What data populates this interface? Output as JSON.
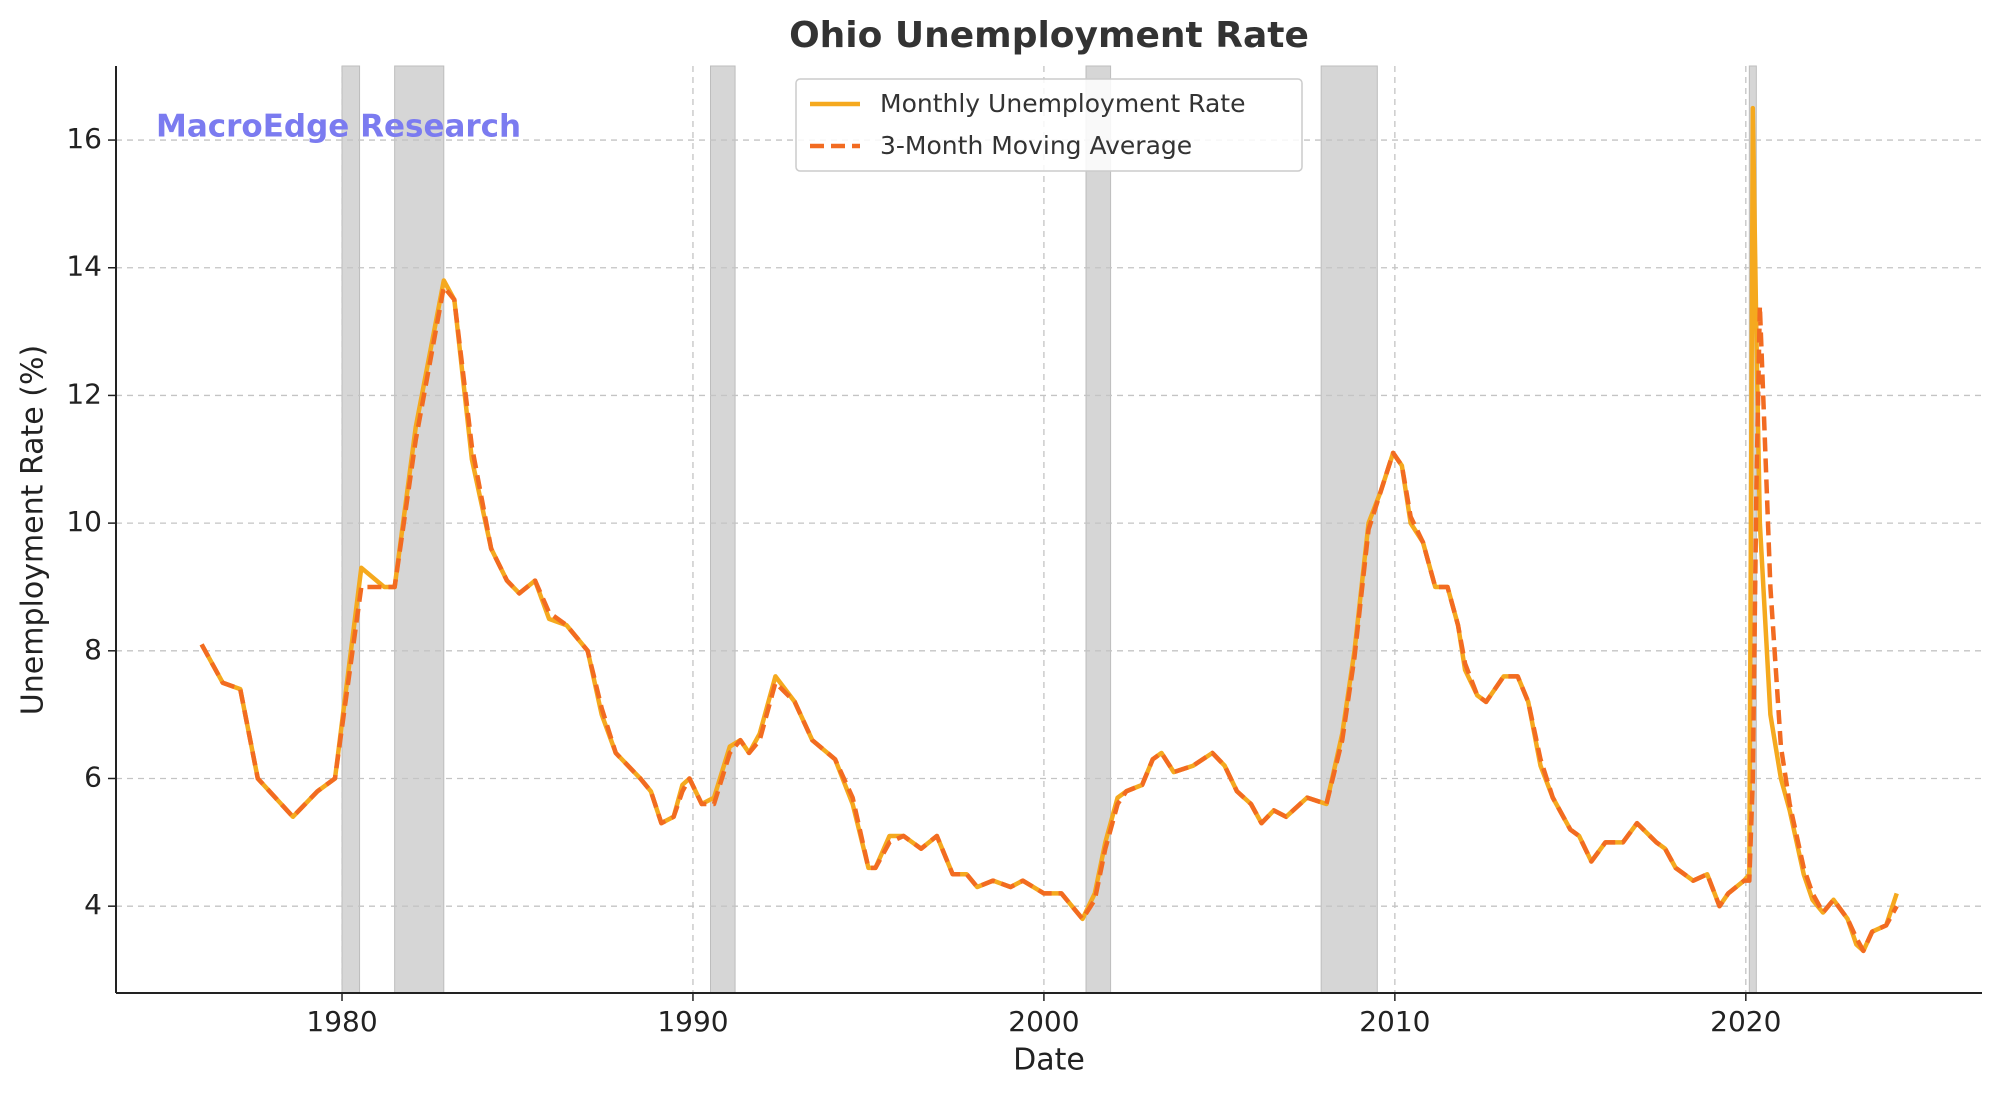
{
  "chart_data": {
    "type": "line",
    "title": "Ohio Unemployment Rate",
    "annotation": "MacroEdge Research",
    "xlabel": "Date",
    "ylabel": "Unemployment Rate (%)",
    "xlim": [
      1973.56,
      2026.73
    ],
    "ylim": [
      2.64,
      17.16
    ],
    "xticks": [
      1980,
      1990,
      2000,
      2010,
      2020
    ],
    "yticks": [
      4,
      6,
      8,
      10,
      12,
      14,
      16
    ],
    "grid": true,
    "legend": "upper center",
    "recession_color": "#d6d6d6",
    "recessions": [
      [
        1980.0,
        1980.5
      ],
      [
        1981.5,
        1982.9
      ],
      [
        1990.5,
        1991.2
      ],
      [
        2001.2,
        2001.9
      ],
      [
        2007.9,
        2009.5
      ],
      [
        2020.1,
        2020.3
      ]
    ],
    "x": [
      1976.0,
      1976.6,
      1977.1,
      1977.6,
      1978.6,
      1979.3,
      1979.8,
      1980.55,
      1981.2,
      1981.5,
      1982.1,
      1982.9,
      1983.2,
      1983.7,
      1984.25,
      1984.7,
      1985.05,
      1985.5,
      1985.9,
      1986.4,
      1987.0,
      1987.4,
      1987.8,
      1988.5,
      1988.8,
      1989.1,
      1989.45,
      1989.7,
      1989.9,
      1990.25,
      1990.6,
      1991.05,
      1991.35,
      1991.6,
      1991.9,
      1992.35,
      1992.9,
      1993.4,
      1994.05,
      1994.55,
      1995.0,
      1995.2,
      1995.6,
      1996.0,
      1996.5,
      1996.95,
      1997.4,
      1997.8,
      1998.1,
      1998.55,
      1999.05,
      1999.4,
      2000.0,
      2000.5,
      2001.1,
      2001.45,
      2001.75,
      2002.1,
      2002.35,
      2002.8,
      2003.1,
      2003.35,
      2003.7,
      2004.25,
      2004.8,
      2005.15,
      2005.5,
      2005.9,
      2006.2,
      2006.55,
      2006.9,
      2007.5,
      2008.05,
      2008.5,
      2008.85,
      2009.25,
      2009.6,
      2009.95,
      2010.2,
      2010.45,
      2010.8,
      2011.15,
      2011.5,
      2011.8,
      2012.0,
      2012.35,
      2012.6,
      2013.1,
      2013.5,
      2013.8,
      2014.15,
      2014.5,
      2015.0,
      2015.25,
      2015.6,
      2016.0,
      2016.5,
      2016.9,
      2017.45,
      2017.7,
      2018.0,
      2018.5,
      2018.9,
      2019.25,
      2019.5,
      2019.95,
      2020.1,
      2020.2,
      2020.3,
      2020.4,
      2020.7,
      2021.0,
      2021.25,
      2021.65,
      2021.9,
      2022.2,
      2022.5,
      2022.9,
      2023.15,
      2023.35,
      2023.6,
      2024.0,
      2024.3
    ],
    "series": [
      {
        "name": "Monthly Unemployment Rate",
        "color": "#f5a91e",
        "dash": false,
        "values": [
          8.1,
          7.5,
          7.4,
          6.0,
          5.4,
          5.8,
          6.0,
          9.3,
          9.0,
          9.0,
          11.5,
          13.8,
          13.5,
          11.0,
          9.6,
          9.1,
          8.9,
          9.1,
          8.5,
          8.4,
          8.0,
          7.0,
          6.4,
          6.0,
          5.8,
          5.3,
          5.4,
          5.9,
          6.0,
          5.6,
          5.7,
          6.5,
          6.6,
          6.4,
          6.7,
          7.6,
          7.2,
          6.6,
          6.3,
          5.6,
          4.6,
          4.6,
          5.1,
          5.1,
          4.9,
          5.1,
          4.5,
          4.5,
          4.3,
          4.4,
          4.3,
          4.4,
          4.2,
          4.2,
          3.8,
          4.2,
          5.0,
          5.7,
          5.8,
          5.9,
          6.3,
          6.4,
          6.1,
          6.2,
          6.4,
          6.2,
          5.8,
          5.6,
          5.3,
          5.5,
          5.4,
          5.7,
          5.6,
          6.7,
          8.0,
          10.0,
          10.5,
          11.1,
          10.9,
          10.0,
          9.7,
          9.0,
          9.0,
          8.4,
          7.7,
          7.3,
          7.2,
          7.6,
          7.6,
          7.2,
          6.2,
          5.7,
          5.2,
          5.1,
          4.7,
          5.0,
          5.0,
          5.3,
          5.0,
          4.9,
          4.6,
          4.4,
          4.5,
          4.0,
          4.2,
          4.4,
          4.5,
          16.5,
          13.0,
          10.0,
          7.0,
          6.0,
          5.5,
          4.5,
          4.1,
          3.9,
          4.1,
          3.8,
          3.4,
          3.3,
          3.6,
          3.7,
          4.2
        ]
      },
      {
        "name": "3-Month Moving Average",
        "color": "#f26b21",
        "dash": true,
        "values": [
          8.1,
          7.5,
          7.4,
          6.0,
          5.4,
          5.8,
          6.0,
          9.0,
          9.0,
          9.0,
          11.3,
          13.7,
          13.5,
          11.2,
          9.6,
          9.1,
          8.9,
          9.1,
          8.6,
          8.4,
          8.0,
          7.1,
          6.4,
          6.0,
          5.8,
          5.3,
          5.4,
          5.8,
          6.0,
          5.6,
          5.6,
          6.4,
          6.6,
          6.4,
          6.6,
          7.5,
          7.2,
          6.6,
          6.3,
          5.7,
          4.6,
          4.6,
          5.0,
          5.1,
          4.9,
          5.1,
          4.5,
          4.5,
          4.3,
          4.4,
          4.3,
          4.4,
          4.2,
          4.2,
          3.8,
          4.1,
          4.9,
          5.6,
          5.8,
          5.9,
          6.3,
          6.4,
          6.1,
          6.2,
          6.4,
          6.2,
          5.8,
          5.6,
          5.3,
          5.5,
          5.4,
          5.7,
          5.6,
          6.6,
          7.9,
          9.9,
          10.5,
          11.1,
          10.9,
          10.1,
          9.7,
          9.0,
          9.0,
          8.4,
          7.8,
          7.3,
          7.2,
          7.6,
          7.6,
          7.2,
          6.3,
          5.7,
          5.2,
          5.1,
          4.7,
          5.0,
          5.0,
          5.3,
          5.0,
          4.9,
          4.6,
          4.4,
          4.5,
          4.0,
          4.2,
          4.4,
          4.4,
          6.0,
          10.5,
          13.4,
          9.0,
          6.5,
          5.6,
          4.6,
          4.2,
          3.9,
          4.1,
          3.8,
          3.5,
          3.3,
          3.6,
          3.7,
          4.0
        ]
      }
    ]
  }
}
